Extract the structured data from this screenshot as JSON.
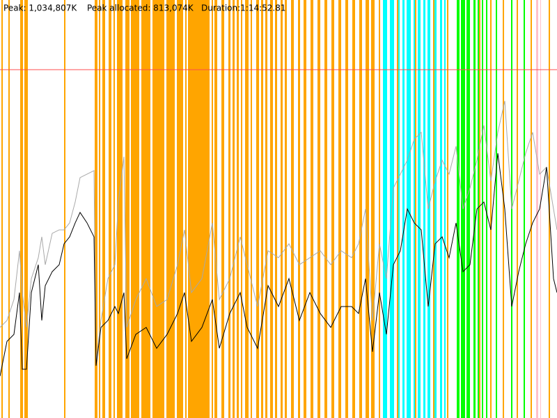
{
  "chart_data": {
    "type": "line",
    "header": [
      "Peak allocated: 813,074K",
      "Duration:1:14:52.81"
    ],
    "peak_line": {
      "value": 1034807,
      "label": "Peak: 1,034,807K",
      "color": "#ff4d4d"
    },
    "xlim": [
      0,
      100
    ],
    "ylim": [
      0,
      1241768
    ],
    "bands": [
      {
        "color": "#ffa500",
        "intervals": [
          [
            0.25,
            0.5
          ],
          [
            1.5,
            1.75
          ],
          [
            3.625,
            4.125
          ],
          [
            4.375,
            5
          ],
          [
            11.5,
            11.75
          ],
          [
            17,
            17.5
          ],
          [
            17.75,
            18
          ],
          [
            18.375,
            18.875
          ],
          [
            19.5,
            20
          ],
          [
            20.375,
            20.625
          ],
          [
            21,
            22
          ],
          [
            22.5,
            23.25
          ],
          [
            23.5,
            25
          ],
          [
            25.375,
            27
          ],
          [
            27.375,
            29.5
          ],
          [
            29.875,
            31.375
          ],
          [
            31.75,
            32.875
          ],
          [
            33.25,
            33.5
          ],
          [
            33.75,
            37.625
          ],
          [
            38,
            38.25
          ],
          [
            38.5,
            39
          ],
          [
            39.75,
            40.25
          ],
          [
            41,
            41.375
          ],
          [
            41.75,
            42.125
          ],
          [
            42.5,
            42.875
          ],
          [
            43.25,
            43.5
          ],
          [
            44,
            44.625
          ],
          [
            45,
            45.25
          ],
          [
            46,
            46.5
          ],
          [
            46.875,
            47.25
          ],
          [
            47.625,
            48
          ],
          [
            48.5,
            49
          ],
          [
            49.375,
            49.75
          ],
          [
            50.375,
            50.75
          ],
          [
            51.125,
            51.5
          ],
          [
            52.25,
            52.75
          ],
          [
            53.5,
            53.875
          ],
          [
            54.5,
            55
          ],
          [
            55.75,
            56.25
          ],
          [
            57,
            57.5
          ],
          [
            58.25,
            58.75
          ],
          [
            59.5,
            60
          ],
          [
            60.75,
            61.25
          ],
          [
            62,
            62.5
          ],
          [
            63.25,
            63.75
          ],
          [
            64.5,
            65
          ],
          [
            65.625,
            66.25
          ],
          [
            66.625,
            67.25
          ],
          [
            68,
            68.25
          ],
          [
            71.25,
            71.5
          ],
          [
            74.5,
            74.75
          ],
          [
            77.75,
            78
          ],
          [
            80.25,
            80.5
          ],
          [
            86,
            86.25
          ],
          [
            88,
            88.25
          ],
          [
            90.25,
            90.5
          ],
          [
            92.75,
            93
          ],
          [
            95.25,
            95.5
          ],
          [
            98.5,
            98.75
          ]
        ]
      },
      {
        "color": "#00ffff",
        "intervals": [
          [
            68.75,
            69.5
          ],
          [
            70,
            70.75
          ],
          [
            71.5,
            71.75
          ],
          [
            72.25,
            72.625
          ],
          [
            73,
            73.75
          ],
          [
            74.25,
            74.5
          ],
          [
            75,
            75.5
          ],
          [
            76,
            76.375
          ],
          [
            76.75,
            77.25
          ],
          [
            78,
            78.375
          ],
          [
            79,
            79.375
          ],
          [
            79.75,
            80
          ]
        ]
      },
      {
        "color": "#00ff00",
        "intervals": [
          [
            82,
            82.5
          ],
          [
            82.75,
            83.5
          ],
          [
            83.75,
            84.375
          ],
          [
            85,
            85.375
          ],
          [
            85.75,
            86
          ],
          [
            86.5,
            86.75
          ],
          [
            87.25,
            87.5
          ],
          [
            89,
            89.25
          ],
          [
            91.75,
            92
          ],
          [
            94,
            94.25
          ]
        ]
      },
      {
        "color": "#ffc0cb",
        "intervals": [
          [
            96.25,
            96.625
          ],
          [
            97,
            97.125
          ]
        ]
      }
    ],
    "x": [
      0,
      1.25,
      2.5,
      3.5,
      4,
      4.75,
      5.625,
      6.875,
      7.5,
      8.125,
      9.375,
      10.625,
      11.5,
      12.5,
      13.5,
      14.375,
      15.625,
      16.875,
      17.25,
      18.125,
      19.375,
      20.625,
      21.25,
      22.25,
      22.75,
      24.375,
      26.25,
      28.125,
      30,
      31.875,
      33.125,
      34.375,
      36.25,
      38.125,
      39.375,
      41.25,
      43.125,
      44.375,
      46.25,
      48.125,
      50,
      51.875,
      53.75,
      55.625,
      57.5,
      59.375,
      61.25,
      63.125,
      64.375,
      65.625,
      66.875,
      68.125,
      69.375,
      70.625,
      71.875,
      73.125,
      74.375,
      75.625,
      76.875,
      78.125,
      79.375,
      80.625,
      81.875,
      83.125,
      84.375,
      85.625,
      86.875,
      88.125,
      89.375,
      90.625,
      91.875,
      93.125,
      94.375,
      95.625,
      96.875,
      98.125,
      99.375,
      100
    ],
    "series": [
      {
        "color": "#a8a8a8",
        "values": [
          269100,
          289800,
          351900,
          496800,
          372600,
          269100,
          414000,
          476100,
          538200,
          455400,
          548550,
          558900,
          558900,
          579600,
          641700,
          714150,
          724500,
          734850,
          165600,
          289800,
          414000,
          455400,
          641700,
          776250,
          269100,
          351900,
          414000,
          331200,
          351900,
          455400,
          558900,
          372600,
          414000,
          579600,
          351900,
          414000,
          538200,
          455400,
          331200,
          496800,
          476100,
          517500,
          455400,
          476100,
          496800,
          455400,
          496800,
          476100,
          517500,
          621000,
          289800,
          517500,
          414000,
          683100,
          724500,
          765900,
          828000,
          848700,
          621000,
          703800,
          765900,
          724500,
          807300,
          621000,
          683100,
          765900,
          869400,
          703800,
          848700,
          941850,
          621000,
          703800,
          786600,
          848700,
          724500,
          745200,
          621000,
          558900
        ]
      },
      {
        "color": "#000000",
        "values": [
          124200,
          227700,
          248400,
          372600,
          144900,
          144900,
          372600,
          455400,
          289800,
          393300,
          434700,
          455400,
          517500,
          538200,
          579600,
          610650,
          579600,
          538200,
          155250,
          269100,
          289800,
          331200,
          310500,
          372600,
          175950,
          248400,
          269100,
          207000,
          248400,
          310500,
          372600,
          227700,
          269100,
          351900,
          207000,
          310500,
          372600,
          269100,
          207000,
          393300,
          331200,
          414000,
          289800,
          372600,
          310500,
          269100,
          331200,
          331200,
          310500,
          414000,
          196650,
          372600,
          248400,
          455400,
          496800,
          621000,
          579600,
          558900,
          331200,
          517500,
          538200,
          476100,
          579600,
          434700,
          455400,
          621000,
          641700,
          558900,
          786600,
          621000,
          331200,
          434700,
          517500,
          579600,
          621000,
          745200,
          414000,
          372600
        ]
      }
    ]
  }
}
